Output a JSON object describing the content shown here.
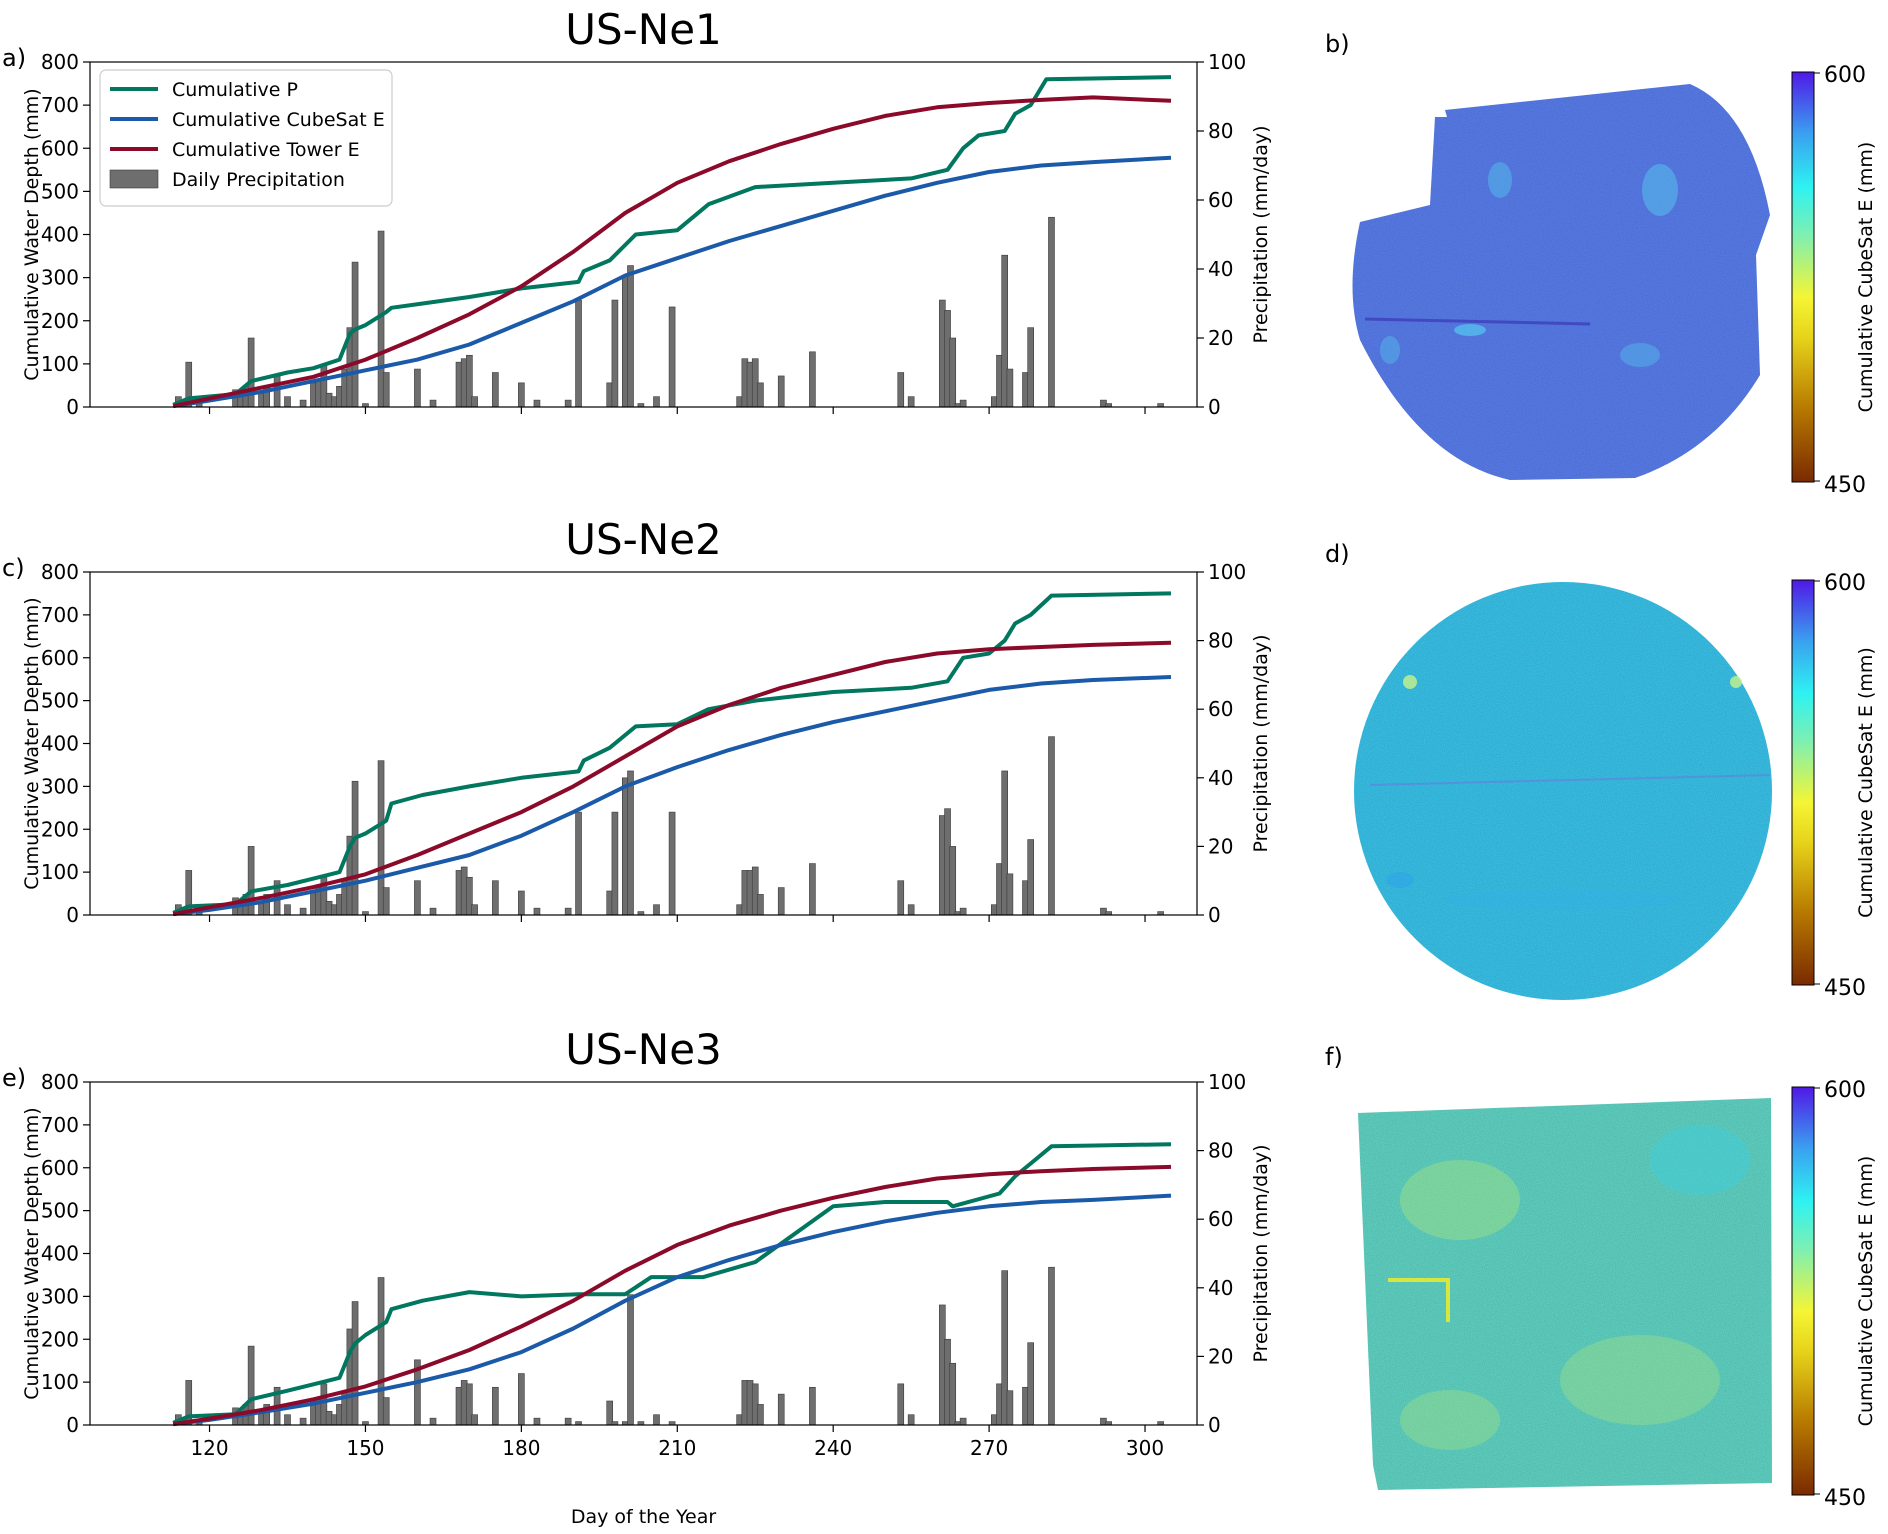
{
  "figure": {
    "panel_labels": [
      "a)",
      "b)",
      "c)",
      "d)",
      "e)",
      "f)"
    ],
    "xlabel": "Day of the Year",
    "left_ylabel": "Cumulative Water Depth (mm)",
    "right_ylabel": "Precipitation (mm/day)",
    "legend": [
      "Cumulative P",
      "Cumulative CubeSat E",
      "Cumulative Tower E",
      "Daily Precipitation"
    ],
    "colorbar": {
      "label": "Cumulative CubeSat E (mm)",
      "max_label": "600",
      "min_label": "450",
      "range": [
        450,
        600
      ]
    }
  },
  "colors": {
    "cumulative_p": "#00775e",
    "cubesat_e": "#1b5aa8",
    "tower_e": "#8b0a2a",
    "daily_precip": "#6e6e6e",
    "map_ne1": "#5a7ff0",
    "map_ne2": "#3ac6ee",
    "map_ne3": "#62d8c8"
  },
  "chart_data": [
    {
      "type": "line",
      "title": "US-Ne1",
      "xlabel": "Day of the Year",
      "ylabel": "Cumulative Water Depth (mm)",
      "y2label": "Precipitation (mm/day)",
      "xlim": [
        97,
        310
      ],
      "ylim": [
        0,
        800
      ],
      "y2lim": [
        0,
        100
      ],
      "xticks": [
        120,
        150,
        180,
        210,
        240,
        270,
        300
      ],
      "yticks": [
        0,
        100,
        200,
        300,
        400,
        500,
        600,
        700,
        800
      ],
      "y2ticks": [
        0,
        20,
        40,
        60,
        80,
        100
      ],
      "series": [
        {
          "name": "Cumulative P",
          "x": [
            113,
            116,
            125,
            128,
            135,
            140,
            145,
            146,
            147,
            148,
            150,
            154,
            155,
            161,
            170,
            180,
            191,
            192,
            197,
            202,
            210,
            216,
            225,
            240,
            255,
            262,
            265,
            268,
            273,
            275,
            278,
            281,
            305
          ],
          "values": [
            5,
            20,
            30,
            60,
            80,
            90,
            110,
            140,
            170,
            180,
            190,
            220,
            230,
            240,
            255,
            275,
            290,
            315,
            340,
            400,
            410,
            470,
            510,
            520,
            530,
            550,
            600,
            630,
            640,
            680,
            700,
            760,
            765
          ]
        },
        {
          "name": "Cumulative CubeSat E",
          "x": [
            113,
            120,
            130,
            140,
            150,
            160,
            170,
            180,
            190,
            200,
            210,
            220,
            230,
            240,
            250,
            260,
            270,
            280,
            290,
            305
          ],
          "values": [
            2,
            15,
            35,
            60,
            85,
            110,
            145,
            195,
            245,
            305,
            345,
            385,
            420,
            455,
            490,
            520,
            545,
            560,
            568,
            578
          ]
        },
        {
          "name": "Cumulative Tower E",
          "x": [
            113,
            120,
            130,
            140,
            150,
            160,
            170,
            180,
            190,
            200,
            210,
            220,
            230,
            240,
            250,
            260,
            270,
            280,
            290,
            305
          ],
          "values": [
            2,
            20,
            45,
            70,
            110,
            160,
            215,
            280,
            360,
            450,
            520,
            570,
            610,
            645,
            675,
            695,
            705,
            712,
            718,
            710
          ]
        }
      ],
      "bars": {
        "name": "Daily Precipitation",
        "x": [
          114,
          115,
          116,
          118,
          125,
          126,
          127,
          128,
          130,
          131,
          133,
          135,
          138,
          140,
          141,
          142,
          143,
          144,
          145,
          146,
          147,
          148,
          150,
          153,
          154,
          160,
          163,
          168,
          169,
          170,
          171,
          175,
          180,
          183,
          189,
          191,
          197,
          198,
          200,
          201,
          203,
          206,
          209,
          222,
          223,
          224,
          225,
          226,
          230,
          236,
          253,
          255,
          261,
          262,
          263,
          264,
          265,
          271,
          272,
          273,
          274,
          277,
          278,
          282,
          292,
          293,
          303
        ],
        "values": [
          3,
          2,
          13,
          1,
          5,
          3,
          6,
          20,
          4,
          6,
          9,
          3,
          2,
          7,
          8,
          12,
          4,
          3,
          6,
          11,
          23,
          42,
          1,
          51,
          10,
          11,
          2,
          13,
          14,
          15,
          3,
          10,
          7,
          2,
          2,
          31,
          7,
          31,
          38,
          41,
          1,
          3,
          29,
          3,
          14,
          13,
          14,
          7,
          9,
          16,
          10,
          3,
          31,
          28,
          20,
          1,
          2,
          3,
          15,
          44,
          11,
          10,
          23,
          55,
          2,
          1,
          1
        ]
      }
    },
    {
      "type": "line",
      "title": "US-Ne2",
      "xlabel": "Day of the Year",
      "ylabel": "Cumulative Water Depth (mm)",
      "y2label": "Precipitation (mm/day)",
      "xlim": [
        97,
        310
      ],
      "ylim": [
        0,
        800
      ],
      "y2lim": [
        0,
        100
      ],
      "xticks": [
        120,
        150,
        180,
        210,
        240,
        270,
        300
      ],
      "yticks": [
        0,
        100,
        200,
        300,
        400,
        500,
        600,
        700,
        800
      ],
      "y2ticks": [
        0,
        20,
        40,
        60,
        80,
        100
      ],
      "series": [
        {
          "name": "Cumulative P",
          "x": [
            113,
            116,
            125,
            128,
            135,
            140,
            145,
            146,
            147,
            148,
            150,
            154,
            155,
            161,
            170,
            180,
            191,
            192,
            197,
            202,
            210,
            216,
            225,
            240,
            255,
            262,
            265,
            270,
            273,
            275,
            278,
            282,
            305
          ],
          "values": [
            5,
            20,
            25,
            55,
            70,
            85,
            100,
            130,
            160,
            180,
            190,
            220,
            260,
            280,
            300,
            320,
            335,
            360,
            390,
            440,
            445,
            480,
            500,
            520,
            530,
            545,
            600,
            610,
            640,
            680,
            700,
            745,
            750
          ]
        },
        {
          "name": "Cumulative CubeSat E",
          "x": [
            113,
            120,
            130,
            140,
            150,
            160,
            170,
            180,
            190,
            200,
            210,
            220,
            230,
            240,
            250,
            260,
            270,
            280,
            290,
            305
          ],
          "values": [
            2,
            12,
            30,
            55,
            80,
            110,
            140,
            185,
            240,
            300,
            345,
            385,
            420,
            450,
            475,
            500,
            525,
            540,
            548,
            555
          ]
        },
        {
          "name": "Cumulative Tower E",
          "x": [
            113,
            120,
            130,
            140,
            150,
            160,
            170,
            180,
            190,
            200,
            210,
            220,
            230,
            240,
            250,
            260,
            270,
            280,
            290,
            305
          ],
          "values": [
            2,
            18,
            40,
            65,
            95,
            140,
            190,
            240,
            300,
            370,
            440,
            490,
            530,
            560,
            590,
            610,
            620,
            625,
            630,
            635
          ]
        }
      ],
      "bars": {
        "name": "Daily Precipitation",
        "x": [
          114,
          115,
          116,
          118,
          125,
          126,
          127,
          128,
          130,
          131,
          133,
          135,
          138,
          140,
          141,
          142,
          143,
          144,
          145,
          146,
          147,
          148,
          150,
          153,
          154,
          160,
          163,
          168,
          169,
          170,
          171,
          175,
          180,
          183,
          189,
          191,
          197,
          198,
          200,
          201,
          203,
          206,
          209,
          222,
          223,
          224,
          225,
          226,
          230,
          236,
          253,
          255,
          261,
          262,
          263,
          264,
          265,
          271,
          272,
          273,
          274,
          277,
          278,
          282,
          292,
          293,
          303
        ],
        "values": [
          3,
          2,
          13,
          1,
          5,
          3,
          6,
          20,
          4,
          6,
          10,
          3,
          2,
          7,
          8,
          11,
          4,
          3,
          6,
          10,
          23,
          39,
          1,
          45,
          8,
          10,
          2,
          13,
          14,
          11,
          3,
          10,
          7,
          2,
          2,
          30,
          7,
          30,
          40,
          42,
          1,
          3,
          30,
          3,
          13,
          13,
          14,
          6,
          8,
          15,
          10,
          3,
          29,
          31,
          20,
          1,
          2,
          3,
          15,
          42,
          12,
          10,
          22,
          52,
          2,
          1,
          1
        ]
      }
    },
    {
      "type": "line",
      "title": "US-Ne3",
      "xlabel": "Day of the Year",
      "ylabel": "Cumulative Water Depth (mm)",
      "y2label": "Precipitation (mm/day)",
      "xlim": [
        97,
        310
      ],
      "ylim": [
        0,
        800
      ],
      "y2lim": [
        0,
        100
      ],
      "xticks": [
        120,
        150,
        180,
        210,
        240,
        270,
        300
      ],
      "yticks": [
        0,
        100,
        200,
        300,
        400,
        500,
        600,
        700,
        800
      ],
      "y2ticks": [
        0,
        20,
        40,
        60,
        80,
        100
      ],
      "series": [
        {
          "name": "Cumulative P",
          "x": [
            113,
            116,
            125,
            128,
            135,
            140,
            145,
            146,
            147,
            148,
            150,
            154,
            155,
            161,
            170,
            180,
            191,
            200,
            205,
            215,
            225,
            240,
            250,
            262,
            263,
            272,
            275,
            278,
            282,
            305
          ],
          "values": [
            5,
            20,
            25,
            60,
            80,
            95,
            110,
            140,
            170,
            190,
            210,
            240,
            270,
            290,
            310,
            300,
            305,
            305,
            345,
            345,
            380,
            510,
            520,
            520,
            510,
            540,
            580,
            610,
            650,
            655
          ]
        },
        {
          "name": "Cumulative CubeSat E",
          "x": [
            113,
            120,
            130,
            140,
            150,
            160,
            170,
            180,
            190,
            200,
            210,
            220,
            230,
            240,
            250,
            260,
            270,
            280,
            290,
            305
          ],
          "values": [
            2,
            12,
            30,
            50,
            75,
            100,
            130,
            170,
            225,
            290,
            345,
            385,
            420,
            450,
            475,
            495,
            510,
            520,
            525,
            535
          ]
        },
        {
          "name": "Cumulative Tower E",
          "x": [
            113,
            120,
            130,
            140,
            150,
            160,
            170,
            180,
            190,
            200,
            210,
            220,
            230,
            240,
            250,
            260,
            270,
            280,
            290,
            305
          ],
          "values": [
            2,
            15,
            35,
            60,
            90,
            130,
            175,
            230,
            290,
            360,
            420,
            465,
            500,
            530,
            555,
            575,
            585,
            592,
            597,
            602
          ]
        }
      ],
      "bars": {
        "name": "Daily Precipitation",
        "x": [
          114,
          115,
          116,
          118,
          125,
          126,
          127,
          128,
          130,
          131,
          133,
          135,
          138,
          140,
          141,
          142,
          143,
          144,
          145,
          146,
          147,
          148,
          150,
          153,
          154,
          160,
          163,
          168,
          169,
          170,
          171,
          175,
          180,
          183,
          189,
          191,
          197,
          198,
          200,
          201,
          203,
          206,
          209,
          222,
          223,
          224,
          225,
          226,
          230,
          236,
          253,
          255,
          261,
          262,
          263,
          264,
          265,
          271,
          272,
          273,
          274,
          277,
          278,
          282,
          292,
          293,
          303
        ],
        "values": [
          3,
          2,
          13,
          1,
          5,
          3,
          6,
          23,
          4,
          6,
          11,
          3,
          2,
          7,
          8,
          12,
          4,
          3,
          6,
          10,
          28,
          36,
          1,
          43,
          8,
          19,
          2,
          11,
          13,
          12,
          3,
          11,
          15,
          2,
          2,
          1,
          7,
          1,
          1,
          38,
          1,
          3,
          1,
          3,
          13,
          13,
          12,
          6,
          9,
          11,
          12,
          3,
          35,
          25,
          18,
          1,
          2,
          3,
          12,
          45,
          10,
          11,
          24,
          46,
          2,
          1,
          1
        ]
      }
    }
  ]
}
